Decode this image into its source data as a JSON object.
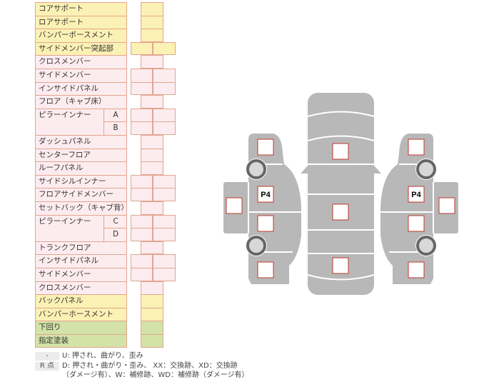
{
  "rows": [
    {
      "label": "コアサポート",
      "color": "y",
      "cells": 1
    },
    {
      "label": "ロアサポート",
      "color": "y",
      "cells": 1
    },
    {
      "label": "バンパーボースメント",
      "color": "y",
      "cells": 1
    },
    {
      "label": "サイドメンバー突起部",
      "color": "y",
      "cells": 2
    },
    {
      "label": "クロスメンバー",
      "color": "p",
      "cells": 1
    },
    {
      "label": "サイドメンバー",
      "color": "p",
      "cells": 2
    },
    {
      "label": "インサイドパネル",
      "color": "p",
      "cells": 2
    },
    {
      "label": "フロア（キャブ床）",
      "color": "p",
      "cells": 1
    },
    {
      "label": "ピラーインナー",
      "sub": "A",
      "color": "p",
      "cells": 2
    },
    {
      "label": "",
      "sub": "B",
      "color": "p",
      "cells": 2
    },
    {
      "label": "ダッシュパネル",
      "color": "p",
      "cells": 1
    },
    {
      "label": "センターフロア",
      "color": "p",
      "cells": 1
    },
    {
      "label": "ルーフパネル",
      "color": "p",
      "cells": 1
    },
    {
      "label": "サイドシルインナー",
      "color": "p",
      "cells": 2
    },
    {
      "label": "フロアサイドメンバー",
      "color": "p",
      "cells": 2
    },
    {
      "label": "セットバック（キャブ背）",
      "color": "p",
      "cells": 1
    },
    {
      "label": "ピラーインナー",
      "sub": "C",
      "color": "p",
      "cells": 2
    },
    {
      "label": "",
      "sub": "D",
      "color": "p",
      "cells": 2
    },
    {
      "label": "トランクフロア",
      "color": "p",
      "cells": 1
    },
    {
      "label": "インサイドパネル",
      "color": "p",
      "cells": 2
    },
    {
      "label": "サイドメンバー",
      "color": "p",
      "cells": 2
    },
    {
      "label": "クロスメンバー",
      "color": "p",
      "cells": 1
    },
    {
      "label": "バックパネル",
      "color": "y",
      "cells": 1
    },
    {
      "label": "バンパーホースメント",
      "color": "y",
      "cells": 1
    },
    {
      "label": "下回り",
      "color": "g",
      "cells": 1
    },
    {
      "label": "指定塗装",
      "color": "g",
      "cells": 1
    }
  ],
  "diagram": {
    "left_label": "P4",
    "right_label": "P4"
  },
  "legend": [
    {
      "key": "-",
      "text": "U: 押され、曲がり、歪み"
    },
    {
      "key": "R 点",
      "text": "D: 押され・曲がり・歪み、 XX：交換跡、XD：交換跡",
      "text2": "（ダメージ有）、W：補修跡、WD：補修跡（ダメージ有）"
    }
  ],
  "colors": {
    "yellow": "#fcf1b4",
    "pink": "#fcecef",
    "green": "#d3e3a7",
    "border": "#e2a58f",
    "car": "#b8b8b8",
    "box_border": "#c0392b"
  }
}
